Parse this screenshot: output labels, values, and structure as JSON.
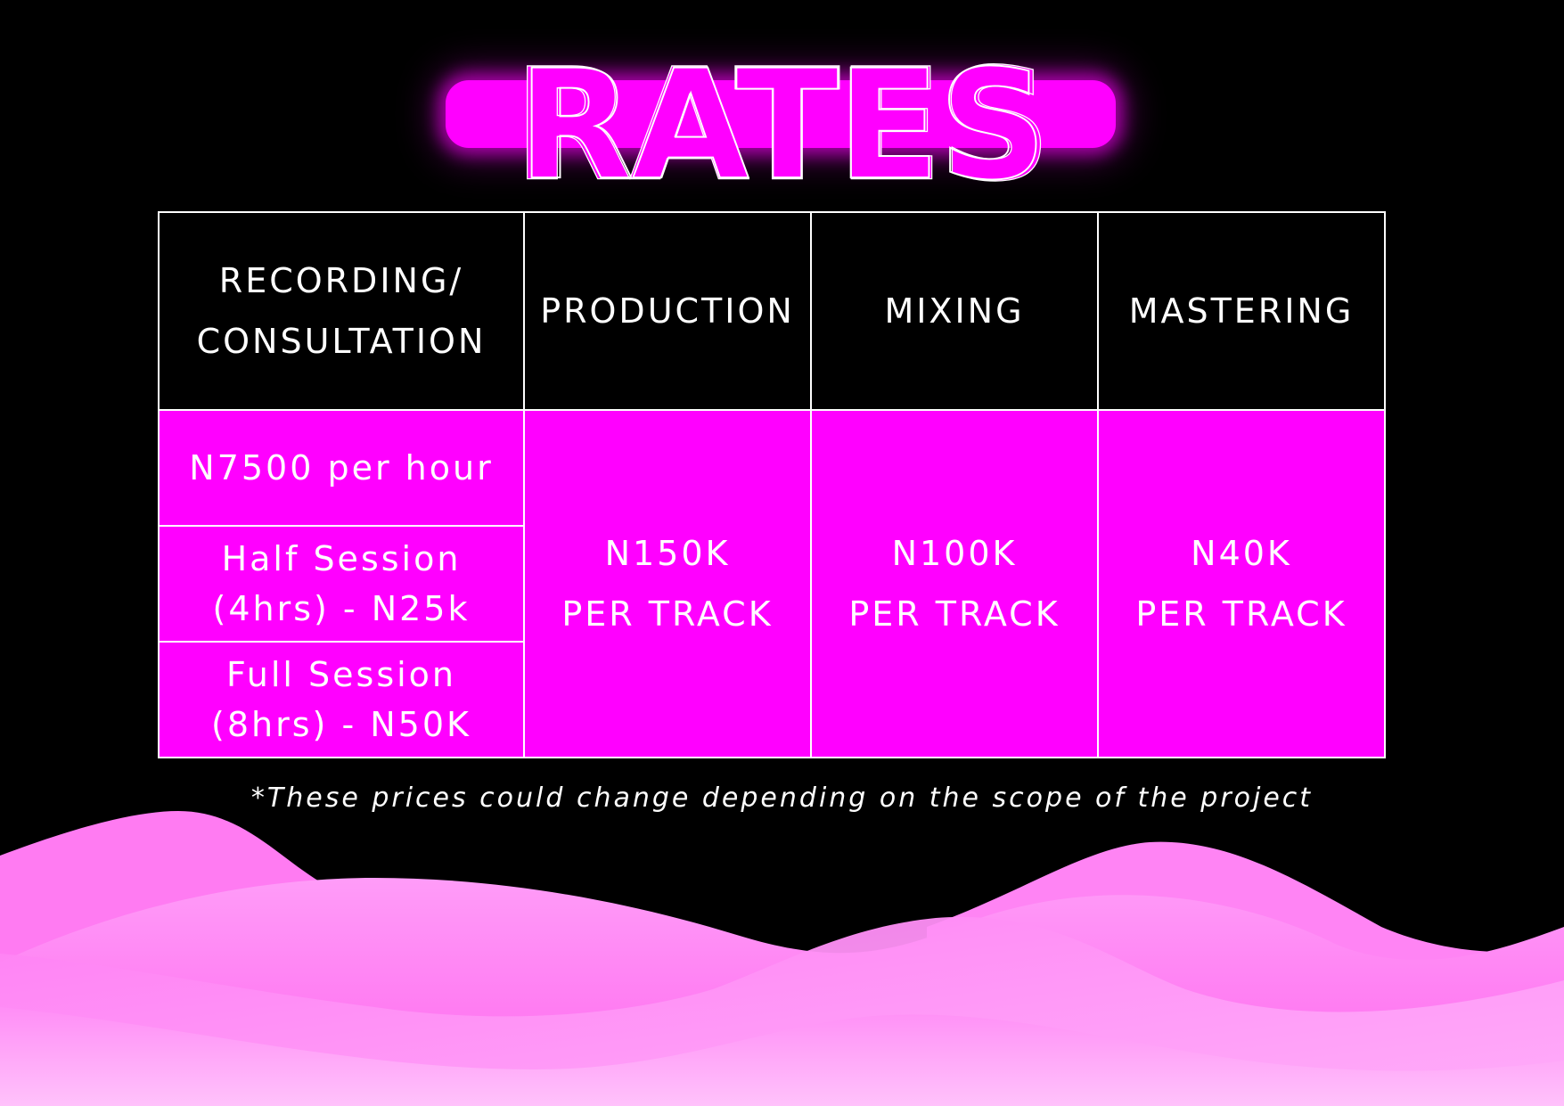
{
  "title": "RATES",
  "colors": {
    "background": "#000000",
    "accent": "#ff00ff",
    "text": "#ffffff",
    "wave": "#ff7cf5"
  },
  "table": {
    "headers": {
      "recording_line1": "RECORDING/",
      "recording_line2": "CONSULTATION",
      "production": "PRODUCTION",
      "mixing": "MIXING",
      "mastering": "MASTERING"
    },
    "recording_rates": {
      "hourly": "N7500 per hour",
      "half_line1": "Half Session",
      "half_line2": "(4hrs) - N25k",
      "full_line1": "Full Session",
      "full_line2": "(8hrs) - N50K"
    },
    "production": {
      "price": "N150K",
      "unit": "PER TRACK"
    },
    "mixing": {
      "price": "N100K",
      "unit": "PER TRACK"
    },
    "mastering": {
      "price": "N40K",
      "unit": "PER TRACK"
    }
  },
  "footnote": "*These prices could change depending on the scope of the project"
}
